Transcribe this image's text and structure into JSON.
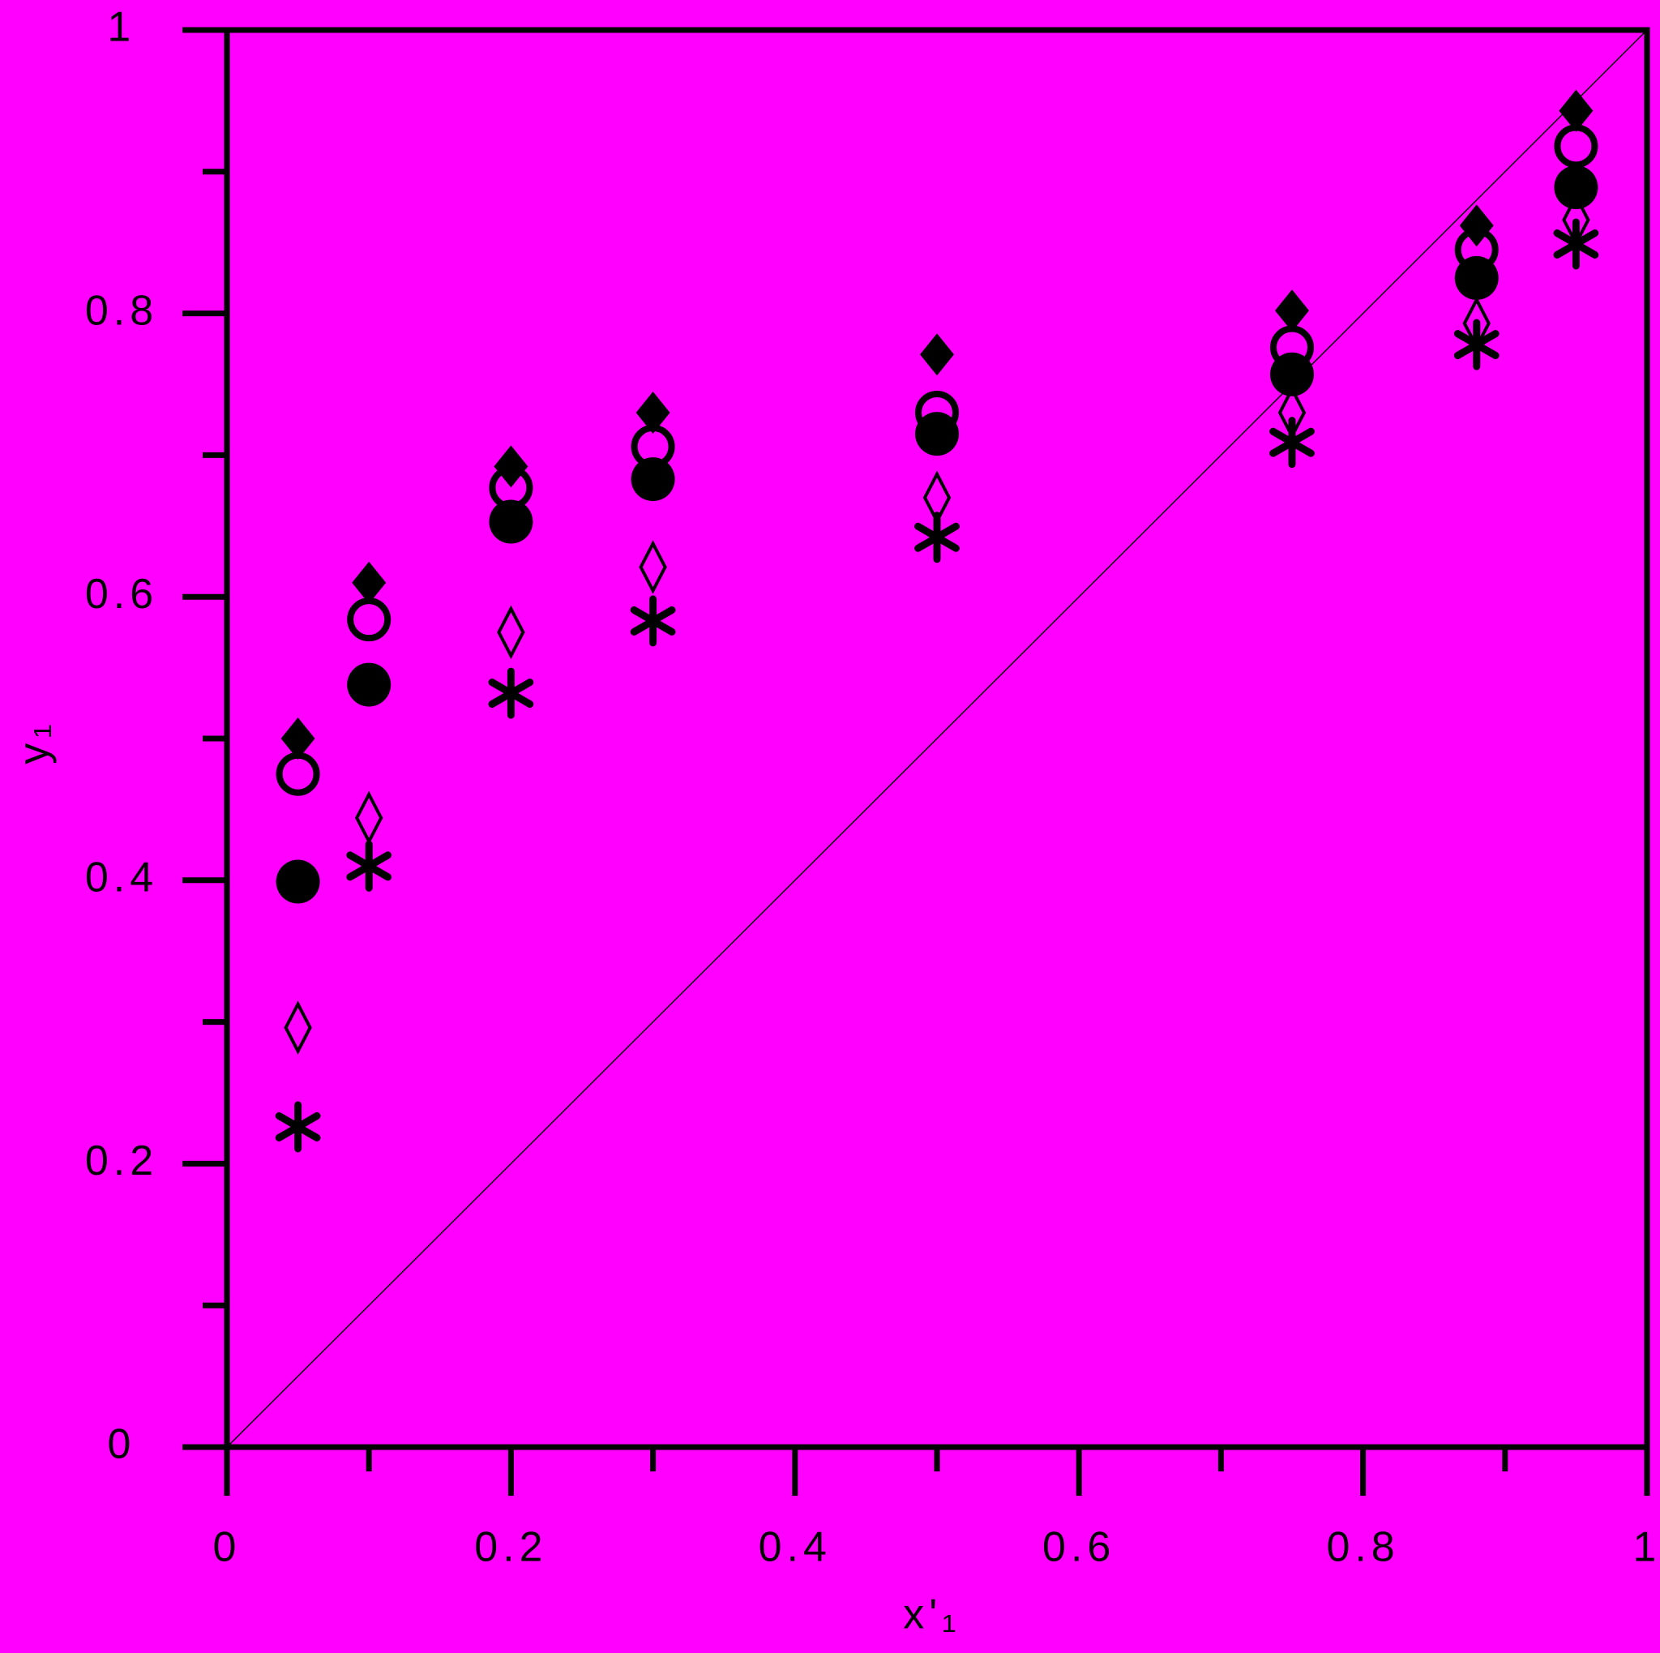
{
  "chart_data": {
    "type": "scatter",
    "x_label": "x'₁",
    "y_label": "y₁",
    "x": [
      0.05,
      0.1,
      0.2,
      0.3,
      0.5,
      0.75,
      0.88,
      0.95
    ],
    "series": [
      {
        "marker": "diamond-filled",
        "color": "#000000",
        "values": [
          0.5,
          0.61,
          0.692,
          0.73,
          0.771,
          0.802,
          0.862,
          0.943
        ]
      },
      {
        "marker": "circle-open",
        "color": "#000000",
        "values": [
          0.475,
          0.584,
          0.677,
          0.706,
          0.73,
          0.776,
          0.845,
          0.918
        ]
      },
      {
        "marker": "circle-filled",
        "color": "#000000",
        "values": [
          0.399,
          0.538,
          0.653,
          0.683,
          0.715,
          0.757,
          0.825,
          0.889
        ]
      },
      {
        "marker": "diamond-open",
        "color": "#000000",
        "values": [
          0.296,
          0.444,
          0.575,
          0.621,
          0.67,
          0.73,
          0.793,
          0.866
        ]
      },
      {
        "marker": "asterisk",
        "color": "#000000",
        "values": [
          0.226,
          0.41,
          0.532,
          0.583,
          0.642,
          0.709,
          0.778,
          0.849
        ]
      }
    ],
    "xlim": [
      0,
      1
    ],
    "ylim": [
      0,
      1
    ],
    "xticks": [
      0,
      0.2,
      0.4,
      0.6,
      0.8,
      1
    ],
    "yticks": [
      0,
      0.2,
      0.4,
      0.6,
      0.8,
      1
    ],
    "xminorticks": [
      0.1,
      0.3,
      0.5,
      0.7,
      0.9
    ],
    "yminorticks": [
      0.1,
      0.3,
      0.5,
      0.7,
      0.9
    ],
    "diagonal": true,
    "background": "#ff00ff"
  }
}
